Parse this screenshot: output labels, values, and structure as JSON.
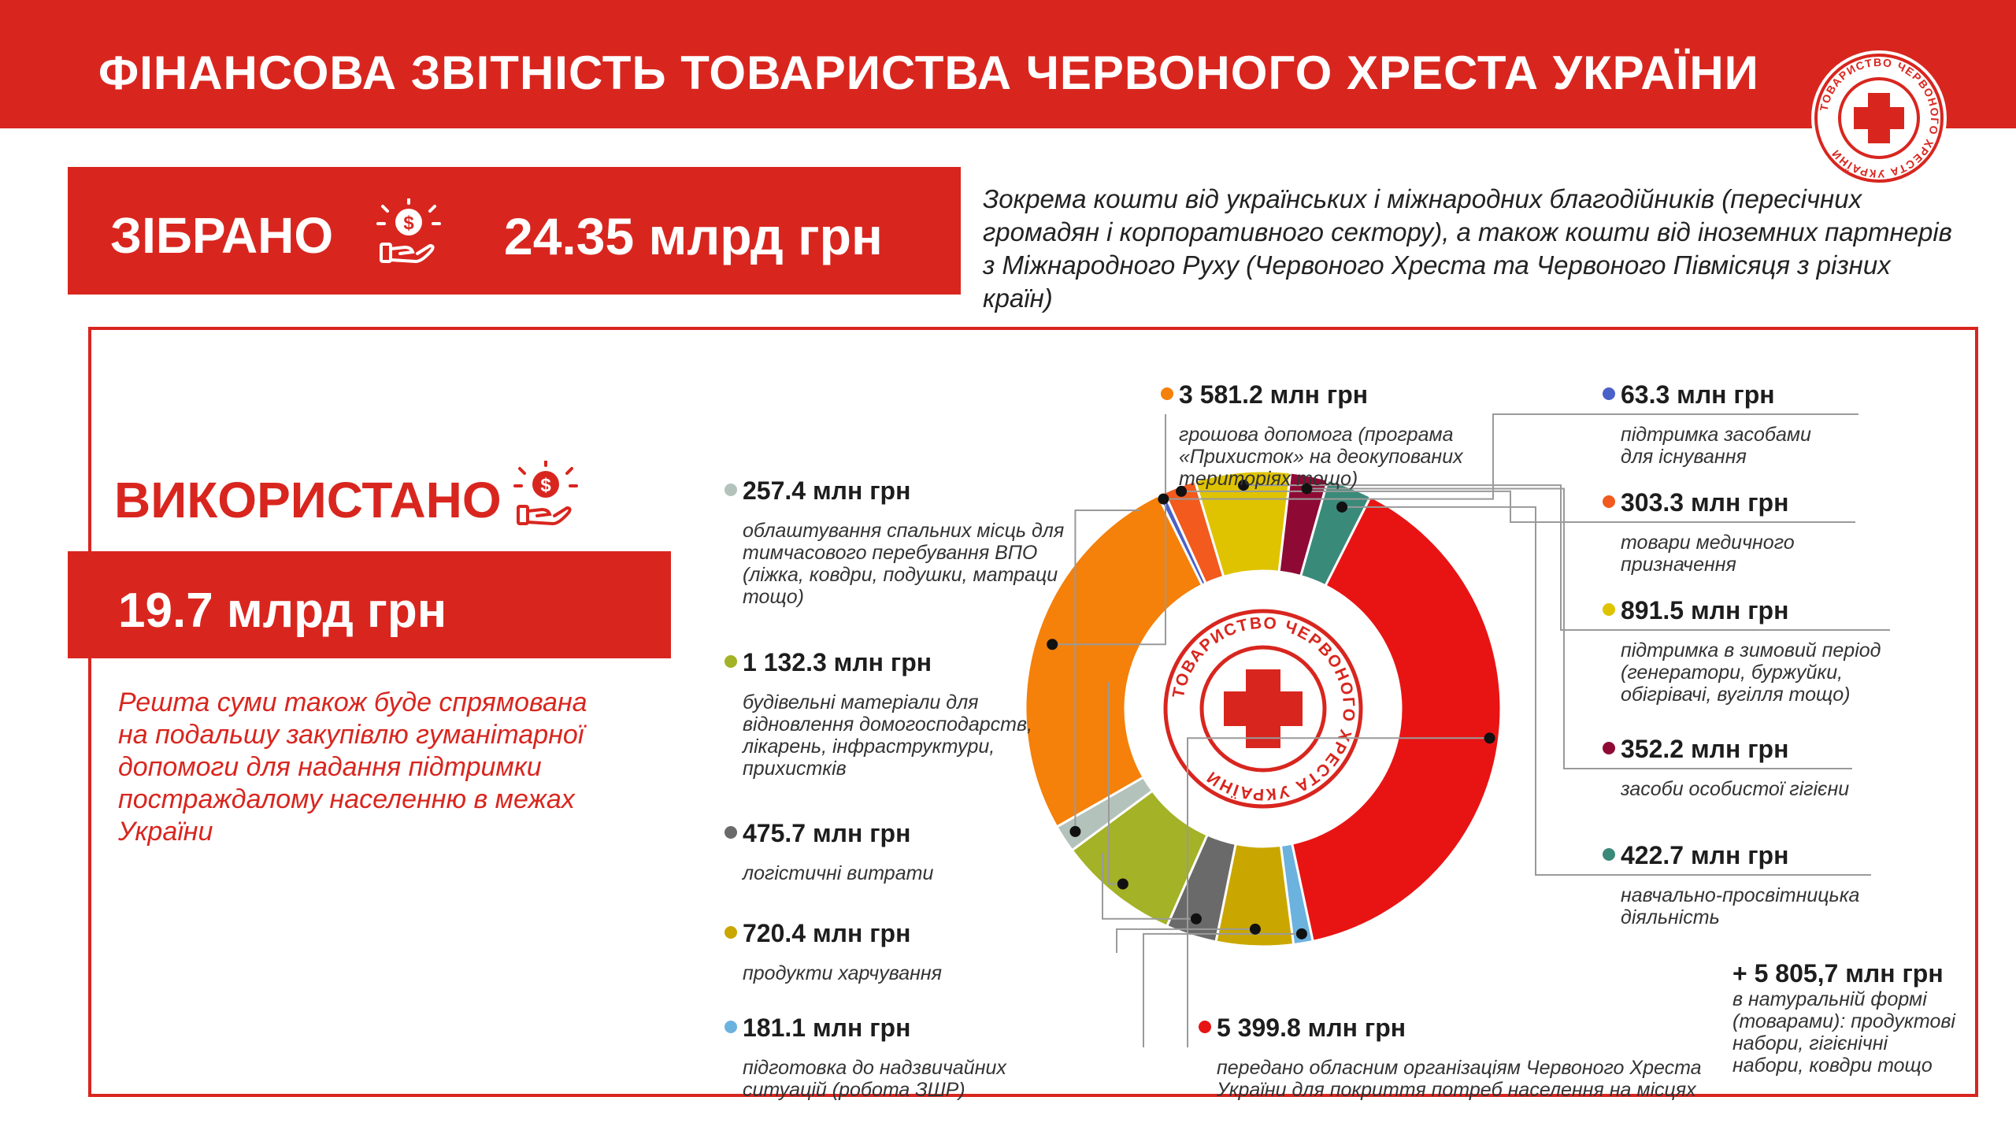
{
  "header": {
    "title": "ФІНАНСОВА ЗВІТНІСТЬ ТОВАРИСТВА ЧЕРВОНОГО ХРЕСТА УКРАЇНИ",
    "logo_text": "ТОВАРИСТВО ЧЕРВОНОГО ХРЕСТА УКРАЇНИ"
  },
  "collected": {
    "label": "ЗІБРАНО",
    "value": "24.35 млрд грн",
    "note": "Зокрема кошти від українських і міжнародних благодійників (пересічних громадян і корпоративного сектору), а також кошти від іноземних партнерів з Міжнародного Руху (Червоного Хреста та Червоного Півмісяця з різних країн)"
  },
  "used": {
    "label": "ВИКОРИСТАНО",
    "value": "19.7 млрд грн",
    "note": "Решта суми також буде спрямована на подальшу закупівлю гуманітарної допомоги для надання підтримки постраждалому населенню в межах України"
  },
  "extra": {
    "value": "+ 5 805,7 млн грн",
    "desc": [
      "в натуральній формі",
      "(товарами): продуктові",
      "набори, гігієнічні",
      "набори, ковдри тощо"
    ]
  },
  "chart_data": {
    "type": "donut",
    "unit": "млн грн",
    "series": [
      {
        "value": 3581.2,
        "label": "3 581.2 млн грн",
        "color": "#f5800a",
        "desc": [
          "грошова допомога (програма",
          "«Прихисток» на деокупованих",
          "територіях тощо)"
        ]
      },
      {
        "value": 63.3,
        "label": "63.3 млн грн",
        "color": "#4a62c8",
        "desc": [
          "підтримка засобами",
          "для існування"
        ]
      },
      {
        "value": 303.3,
        "label": "303.3 млн грн",
        "color": "#f25a1e",
        "desc": [
          "товари медичного",
          "призначення"
        ]
      },
      {
        "value": 891.5,
        "label": "891.5 млн грн",
        "color": "#dfc300",
        "desc": [
          "підтримка в зимовий період",
          "(генератори, буржуйки,",
          "обігрівачі, вугілля тощо)"
        ]
      },
      {
        "value": 352.2,
        "label": "352.2 млн грн",
        "color": "#8e0a35",
        "desc": [
          "засоби особистої гігієни"
        ]
      },
      {
        "value": 422.7,
        "label": "422.7 млн грн",
        "color": "#3a8a7a",
        "desc": [
          "навчально-просвітницька",
          "діяльність"
        ]
      },
      {
        "value": 5399.8,
        "label": "5 399.8 млн грн",
        "color": "#e81414",
        "desc": [
          "передано обласним організаціям Червоного Хреста",
          "України для покриття потреб населення на місцях"
        ]
      },
      {
        "value": 181.1,
        "label": "181.1 млн грн",
        "color": "#6cb2df",
        "desc": [
          "підготовка до надзвичайних",
          "ситуацій (робота ЗШР)"
        ]
      },
      {
        "value": 720.4,
        "label": "720.4 млн грн",
        "color": "#c9a700",
        "desc": [
          "продукти харчування"
        ]
      },
      {
        "value": 475.7,
        "label": "475.7 млн грн",
        "color": "#6a6a6a",
        "desc": [
          "логістичні витрати"
        ]
      },
      {
        "value": 1132.3,
        "label": "1 132.3 млн грн",
        "color": "#a3b226",
        "desc": [
          "будівельні матеріали для",
          "відновлення домогосподарств,",
          "лікарень, інфраструктури,",
          "прихистків"
        ]
      },
      {
        "value": 257.4,
        "label": "257.4 млн грн",
        "color": "#b4c2bc",
        "desc": [
          "облаштування спальних місць для",
          "тимчасового перебування ВПО",
          "(ліжка, ковдри, подушки, матраци",
          "тощо)"
        ]
      }
    ]
  }
}
